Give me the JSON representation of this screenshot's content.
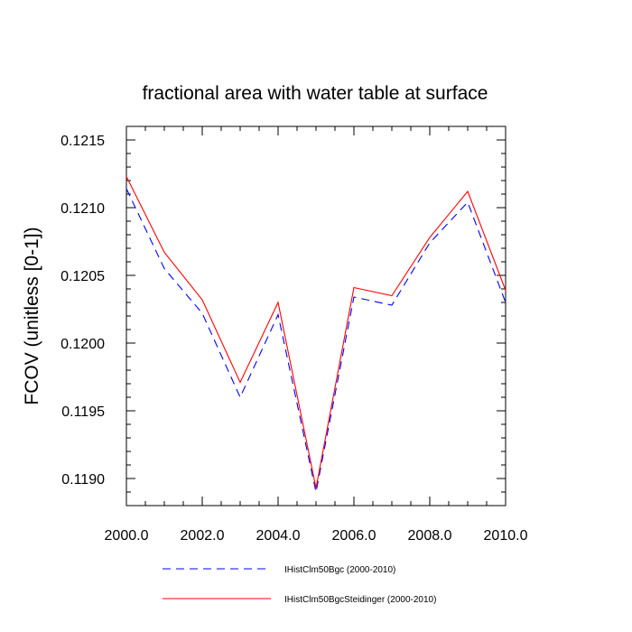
{
  "chart_data": {
    "type": "line",
    "title": "fractional area with water table at surface",
    "xlabel": "",
    "ylabel": "FCOV  (unitless [0-1])",
    "xlim": [
      2000,
      2010
    ],
    "ylim": [
      0.1188,
      0.1216
    ],
    "x_ticks": [
      2000,
      2002,
      2004,
      2006,
      2008,
      2010
    ],
    "x_tick_labels": [
      "2000.0",
      "2002.0",
      "2004.0",
      "2006.0",
      "2008.0",
      "2010.0"
    ],
    "y_ticks": [
      0.119,
      0.1195,
      0.12,
      0.1205,
      0.121,
      0.1215
    ],
    "y_tick_labels": [
      "0.1190",
      "0.1195",
      "0.1200",
      "0.1205",
      "0.1210",
      "0.1215"
    ],
    "grid": false,
    "legend_position": "bottom",
    "x": [
      2000,
      2001,
      2002,
      2003,
      2004,
      2005,
      2006,
      2007,
      2008,
      2009,
      2010
    ],
    "series": [
      {
        "name": "IHistClm50Bgc (2000-2010)",
        "color": "#0000ff",
        "dash": "dashed",
        "values": [
          0.12114,
          0.12055,
          0.12022,
          0.1196,
          0.12021,
          0.1189,
          0.12034,
          0.12028,
          0.12074,
          0.12104,
          0.1203
        ]
      },
      {
        "name": "IHistClm50BgcSteidinger (2000-2010)",
        "color": "#ff0000",
        "dash": "solid",
        "values": [
          0.12123,
          0.12067,
          0.12032,
          0.11971,
          0.1203,
          0.11893,
          0.12041,
          0.12035,
          0.12078,
          0.12112,
          0.12039
        ]
      }
    ]
  }
}
